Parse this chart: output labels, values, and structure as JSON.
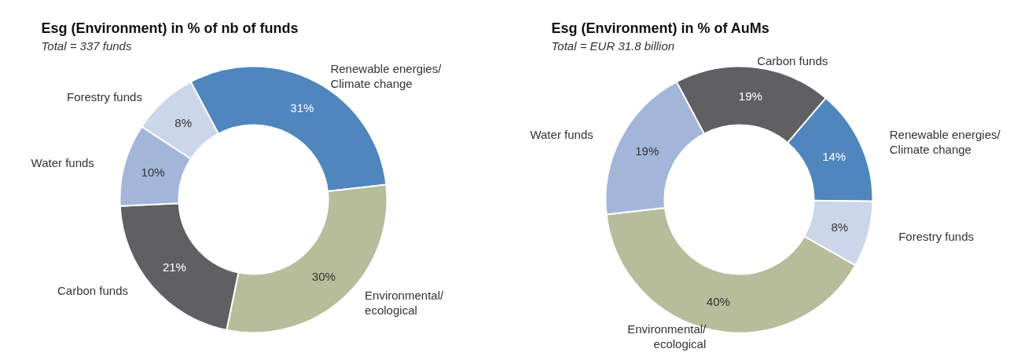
{
  "chart_data": [
    {
      "type": "donut",
      "title": "Esg (Environment) in % of nb of funds",
      "subtitle": "Total = 337 funds",
      "categories": [
        "Renewable energies/\nClimate change",
        "Environmental/\necological",
        "Carbon funds",
        "Water funds",
        "Forestry funds"
      ],
      "values": [
        31,
        30,
        21,
        10,
        8
      ],
      "colors": [
        "#4f86be",
        "#b7bc9b",
        "#606062",
        "#a3b6d9",
        "#cbd6ea"
      ],
      "value_labels": [
        "31%",
        "30%",
        "21%",
        "10%",
        "8%"
      ]
    },
    {
      "type": "donut",
      "title": "Esg (Environment) in % of AuMs",
      "subtitle": "Total = EUR 31.8 billion",
      "categories": [
        "Carbon funds",
        "Renewable energies/\nClimate change",
        "Forestry funds",
        "Environmental/\necological",
        "Water funds"
      ],
      "values": [
        19,
        14,
        8,
        40,
        19
      ],
      "colors": [
        "#606062",
        "#4f86be",
        "#cbd6ea",
        "#b7bc9b",
        "#a3b6d9"
      ],
      "value_labels": [
        "19%",
        "14%",
        "8%",
        "40%",
        "19%"
      ]
    }
  ]
}
